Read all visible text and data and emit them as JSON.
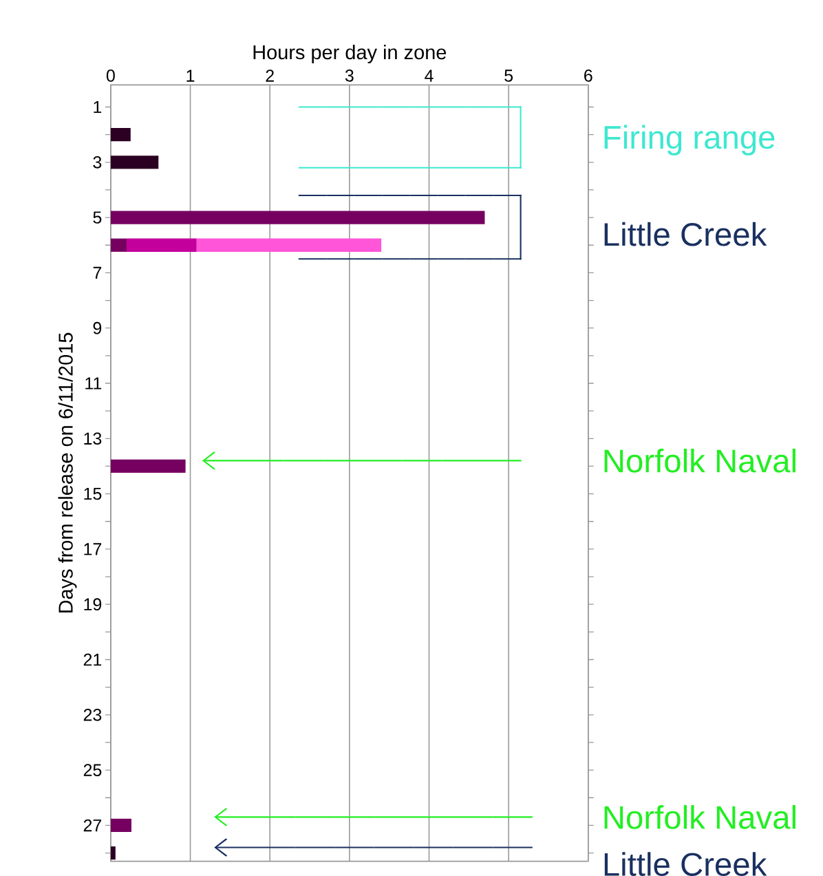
{
  "chart_data": {
    "type": "bar",
    "orientation": "horizontal",
    "stacked": true,
    "xlabel": "Hours per day in zone",
    "ylabel": "Days from release on 6/11/2015",
    "categories": [
      "1",
      null,
      "3",
      null,
      "5",
      null,
      "7",
      null,
      "9",
      null,
      "11",
      null,
      "13",
      null,
      "15",
      null,
      "17",
      null,
      "19",
      null,
      "21",
      null,
      "23",
      null,
      "25",
      null,
      "27",
      null
    ],
    "series": [
      {
        "color": "#2b0022",
        "values": [
          null,
          0.25,
          0.6,
          null,
          null,
          null,
          null,
          null,
          null,
          null,
          null,
          null,
          null,
          null,
          null,
          null,
          null,
          null,
          null,
          null,
          null,
          null,
          null,
          null,
          null,
          null,
          null,
          0.06
        ]
      },
      {
        "color": "#760060",
        "values": [
          null,
          null,
          null,
          null,
          4.7,
          0.2,
          null,
          null,
          null,
          null,
          null,
          null,
          null,
          0.94,
          null,
          null,
          null,
          null,
          null,
          null,
          null,
          null,
          null,
          null,
          null,
          null,
          0.26,
          null
        ]
      },
      {
        "color": "#c4009c",
        "values": [
          null,
          null,
          null,
          null,
          null,
          0.88,
          null,
          null,
          null,
          null,
          null,
          null,
          null,
          null,
          null,
          null,
          null,
          null,
          null,
          null,
          null,
          null,
          null,
          null,
          null,
          null,
          null,
          null
        ]
      },
      {
        "color": "#ff55d9",
        "values": [
          null,
          null,
          null,
          null,
          null,
          2.32,
          null,
          null,
          null,
          null,
          null,
          null,
          null,
          null,
          null,
          null,
          null,
          null,
          null,
          null,
          null,
          null,
          null,
          null,
          null,
          null,
          null,
          null
        ]
      }
    ],
    "xlim": [
      0,
      6
    ],
    "xticks": [
      0,
      1,
      2,
      3,
      4,
      5,
      6
    ],
    "grid": "x",
    "annotations": [
      "Firing range",
      "Little Creek",
      "Norfolk Naval",
      "Norfolk Naval",
      "Little Creek"
    ]
  }
}
